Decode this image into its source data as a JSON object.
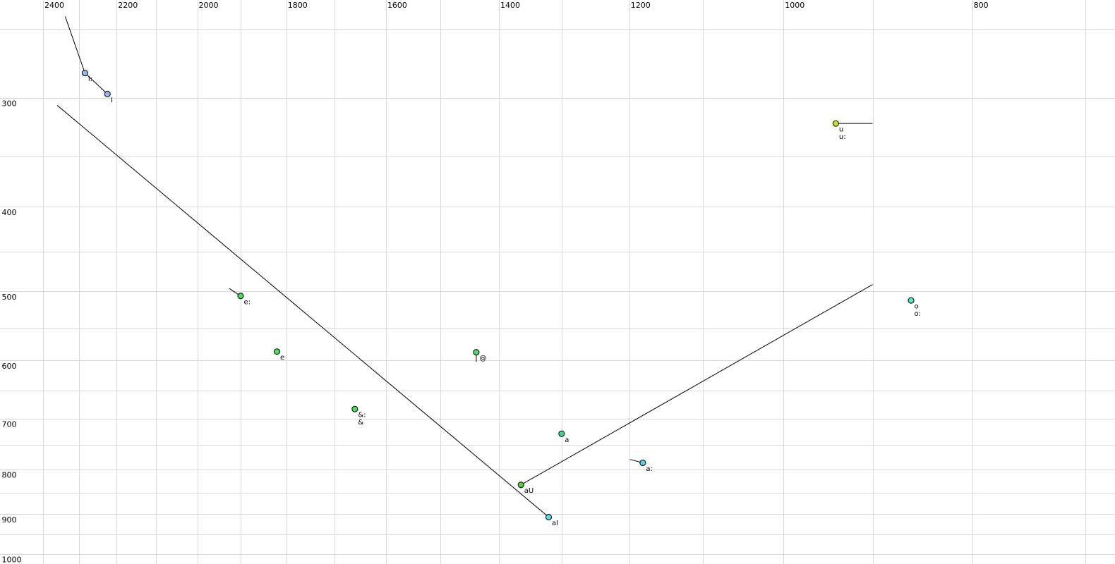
{
  "chart_data": {
    "type": "scatter",
    "title": "",
    "xlabel": "",
    "ylabel": "",
    "axes": {
      "x": {
        "scale": "log",
        "reversed": true,
        "tick_labels": [
          2400,
          2200,
          2000,
          1800,
          1600,
          1400,
          1200,
          1000,
          800
        ],
        "gridline_min": 700,
        "gridline_max": 2400,
        "gridline_step": 100
      },
      "y": {
        "scale": "log",
        "direction": "down",
        "tick_labels": [
          300,
          400,
          500,
          600,
          700,
          800,
          900,
          1000
        ],
        "gridline_min": 250,
        "gridline_max": 1000,
        "gridline_step": 50
      }
    },
    "points": [
      {
        "labels": [
          "i:"
        ],
        "f2": 2284,
        "f1": 281,
        "fill": "#9db4ee"
      },
      {
        "labels": [
          "I"
        ],
        "f2": 2224,
        "f1": 297,
        "fill": "#9db4ee"
      },
      {
        "labels": [
          "e:"
        ],
        "f2": 1900,
        "f1": 506,
        "fill": "#4ade63"
      },
      {
        "labels": [
          "e"
        ],
        "f2": 1820,
        "f1": 586,
        "fill": "#4ade63"
      },
      {
        "labels": [
          "@"
        ],
        "f2": 1438,
        "f1": 587,
        "fill": "#4ade63"
      },
      {
        "labels": [
          "&:",
          "&"
        ],
        "f2": 1660,
        "f1": 682,
        "fill": "#4ade63"
      },
      {
        "labels": [
          "a"
        ],
        "f2": 1300,
        "f1": 728,
        "fill": "#3fd392"
      },
      {
        "labels": [
          "a:"
        ],
        "f2": 1181,
        "f1": 786,
        "fill": "#55d4ea"
      },
      {
        "labels": [
          "aU"
        ],
        "f2": 1364,
        "f1": 833,
        "fill": "#52d636"
      },
      {
        "labels": [
          "aI"
        ],
        "f2": 1320,
        "f1": 907,
        "fill": "#5cdcf0"
      },
      {
        "labels": [
          "u",
          "u:"
        ],
        "f2": 940,
        "f1": 321,
        "fill": "#c9e61a"
      },
      {
        "labels": [
          "o",
          "o:"
        ],
        "f2": 860,
        "f1": 512,
        "fill": "#5ce9c5"
      }
    ],
    "trajectories": [
      {
        "name": "i-long-offglide",
        "from": [
          2338,
          242
        ],
        "to": [
          2284,
          281
        ]
      },
      {
        "name": "i-long-to-I",
        "from": [
          2284,
          281
        ],
        "to": [
          2224,
          297
        ]
      },
      {
        "name": "e-long-offglide",
        "from": [
          1926,
          496
        ],
        "to": [
          1900,
          506
        ]
      },
      {
        "name": "schwa-offglide",
        "from": [
          1438,
          587
        ],
        "to": [
          1438,
          602
        ]
      },
      {
        "name": "a-long-offglide",
        "from": [
          1199,
          779
        ],
        "to": [
          1181,
          786
        ]
      },
      {
        "name": "u-offglide",
        "from": [
          940,
          321
        ],
        "to": [
          900,
          321
        ]
      },
      {
        "name": "aI-glide",
        "from": [
          1320,
          907
        ],
        "to": [
          2360,
          306
        ]
      },
      {
        "name": "aU-glide",
        "from": [
          1364,
          833
        ],
        "to": [
          900,
          491
        ]
      }
    ]
  },
  "colors": {
    "background": "#ffffff",
    "gridline": "#d9d9d9",
    "trajectory_line": "#000000",
    "point_stroke": "#000000",
    "tick_label": "#000000",
    "point_label": "#000000"
  }
}
